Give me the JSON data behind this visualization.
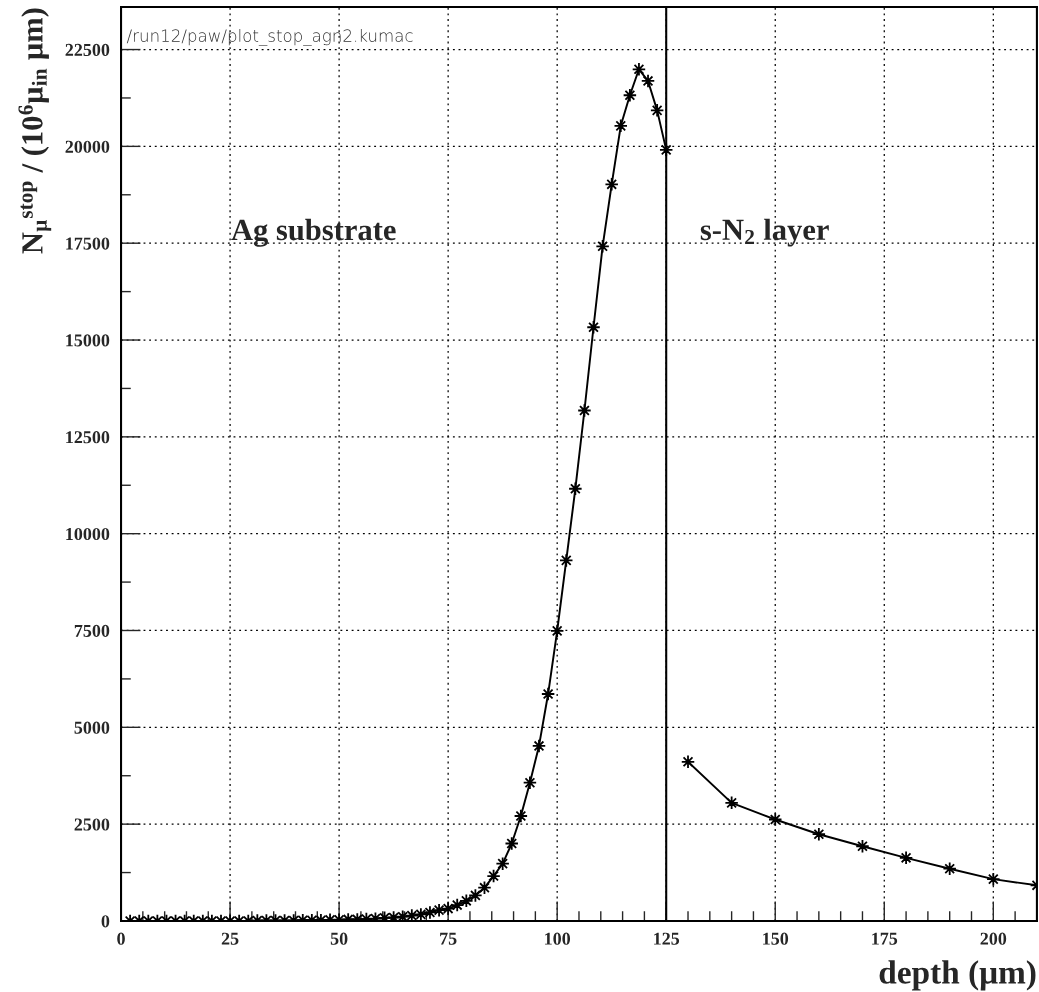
{
  "chart_data": {
    "type": "line",
    "xlabel": "depth (μm)",
    "ylabel": "N$_{μ}$$^{stop}$ / (10$^{6}$μ$_{in}$ μm)",
    "annotations": [
      "/run12/paw/plot_stop_agn2.kumac",
      "Ag substrate",
      "s-N$_{2}$ layer"
    ],
    "series": [
      {
        "color": "#000000",
        "x": [
          2.08,
          4.17,
          6.25,
          8.33,
          10.42,
          12.5,
          14.58,
          16.67,
          18.75,
          20.83,
          22.92,
          25.0,
          27.08,
          29.17,
          31.25,
          33.33,
          35.42,
          37.5,
          39.58,
          41.67,
          43.75,
          45.83,
          47.92,
          50.0,
          52.08,
          54.17,
          56.25,
          58.33,
          60.42,
          62.5,
          64.58,
          66.67,
          68.75,
          70.83,
          72.92,
          75.0,
          77.08,
          79.17,
          81.25,
          83.33,
          85.42,
          87.5,
          89.58,
          91.67,
          93.75,
          95.83,
          97.92,
          100.0,
          102.08,
          104.17,
          106.25,
          108.33,
          110.42,
          112.5,
          114.58,
          116.67,
          118.75,
          120.83,
          122.92,
          125.0
        ],
        "values": [
          0,
          0,
          0,
          0,
          0,
          0,
          0,
          0,
          0,
          0,
          0,
          0,
          0,
          0,
          10,
          10,
          10,
          10,
          10,
          20,
          20,
          20,
          30,
          30,
          40,
          40,
          50,
          60,
          80,
          90,
          110,
          140,
          170,
          220,
          280,
          320,
          410,
          520,
          660,
          860,
          1160,
          1480,
          2000,
          2710,
          3570,
          4520,
          5860,
          7490,
          9310,
          11160,
          13180,
          15330,
          17420,
          19020,
          20530,
          21320,
          21990,
          21690,
          20930,
          19910
        ]
      },
      {
        "color": "#000000",
        "x": [
          130,
          140,
          150,
          160,
          170,
          180,
          190,
          200,
          210
        ],
        "values": [
          4110,
          3050,
          2620,
          2240,
          1930,
          1630,
          1350,
          1080,
          920
        ]
      }
    ],
    "xlim": [
      0,
      210
    ],
    "ylim": [
      0,
      23600
    ],
    "xticks": [
      0,
      {
        "value": 5,
        "label": null
      },
      {
        "value": 10,
        "label": null
      },
      {
        "value": 15,
        "label": null
      },
      {
        "value": 20,
        "label": null
      },
      25,
      {
        "value": 30,
        "label": null
      },
      {
        "value": 35,
        "label": null
      },
      {
        "value": 40,
        "label": null
      },
      {
        "value": 45,
        "label": null
      },
      50,
      {
        "value": 55,
        "label": null
      },
      {
        "value": 60,
        "label": null
      },
      {
        "value": 65,
        "label": null
      },
      {
        "value": 70,
        "label": null
      },
      75,
      {
        "value": 80,
        "label": null
      },
      {
        "value": 85,
        "label": null
      },
      {
        "value": 90,
        "label": null
      },
      {
        "value": 95,
        "label": null
      },
      100,
      {
        "value": 105,
        "label": null
      },
      {
        "value": 110,
        "label": null
      },
      {
        "value": 115,
        "label": null
      },
      {
        "value": 120,
        "label": null
      },
      125,
      {
        "value": 130,
        "label": null
      },
      {
        "value": 135,
        "label": null
      },
      {
        "value": 140,
        "label": null
      },
      {
        "value": 145,
        "label": null
      },
      150,
      {
        "value": 155,
        "label": null
      },
      {
        "value": 160,
        "label": null
      },
      {
        "value": 165,
        "label": null
      },
      {
        "value": 170,
        "label": null
      },
      175,
      {
        "value": 180,
        "label": null
      },
      {
        "value": 185,
        "label": null
      },
      {
        "value": 190,
        "label": null
      },
      {
        "value": 195,
        "label": null
      },
      200,
      {
        "value": 205,
        "label": null
      }
    ],
    "yticks": [
      0,
      {
        "value": 1250,
        "label": null
      },
      2500,
      {
        "value": 3750,
        "label": null
      },
      5000,
      {
        "value": 6250,
        "label": null
      },
      7500,
      {
        "value": 8750,
        "label": null
      },
      10000,
      {
        "value": 11250,
        "label": null
      },
      12500,
      {
        "value": 13750,
        "label": null
      },
      15000,
      {
        "value": 16250,
        "label": null
      },
      17500,
      {
        "value": 18750,
        "label": null
      },
      20000,
      {
        "value": 21250,
        "label": null
      },
      22500
    ],
    "ref_lines": [
      {
        "axis": "x",
        "value": 125,
        "color": "#000000",
        "line_style": "solid"
      }
    ],
    "grid": true,
    "legend": false,
    "marker": "star",
    "line_style": "solid"
  }
}
